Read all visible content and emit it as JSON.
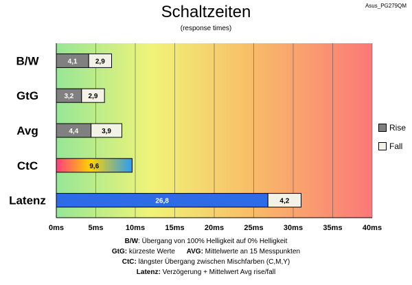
{
  "model_label": "Asus_PG279QM",
  "title": "Schaltzeiten",
  "subtitle": "(response times)",
  "legend": [
    {
      "name": "Rise",
      "color": "#808080"
    },
    {
      "name": "Fall",
      "color": "#f2f2e6"
    }
  ],
  "notes": [
    {
      "key": "B/W",
      "text": ":  Übergang von 100% Helligkeit auf 0% Helligkeit"
    },
    {
      "key": "GtG:",
      "text": " kürzeste  Werte",
      "key2": "AVG:",
      "text2": " Mittelwerte  an 15 Messpunkten"
    },
    {
      "key": "CtC:",
      "text": " längster Übergang  zwischen Mischfarben  (C,M,Y)"
    },
    {
      "key": "Latenz:",
      "text": " Verzögerung  + Mittelwert Avg rise/fall"
    }
  ],
  "chart_data": {
    "type": "bar",
    "orientation": "horizontal",
    "stacked": true,
    "x_unit": "ms",
    "xlim": [
      0,
      40
    ],
    "x_ticks": [
      "0ms",
      "5ms",
      "10ms",
      "15ms",
      "20ms",
      "25ms",
      "30ms",
      "35ms",
      "40ms"
    ],
    "background": "green-to-red gradient along x axis",
    "grid": "vertical gridlines every 5 ms",
    "legend_position": "right",
    "categories": [
      "B/W",
      "GtG",
      "Avg",
      "CtC",
      "Latenz"
    ],
    "series": [
      {
        "name": "Rise",
        "values": [
          4.1,
          3.2,
          4.4,
          9.6,
          26.8
        ],
        "labels": [
          "4,1",
          "3,2",
          "4,4",
          "9,6",
          "26,8"
        ]
      },
      {
        "name": "Fall",
        "values": [
          2.9,
          2.9,
          3.9,
          null,
          4.2
        ],
        "labels": [
          "2,9",
          "2,9",
          "3,9",
          "",
          "4,2"
        ]
      }
    ],
    "colors": {
      "rise": "#808080",
      "fall": "#f2f2e6",
      "ctc_gradient": [
        "#ff3d7f",
        "#ffd200",
        "#2a9df4"
      ],
      "latenz": "#2e6be6"
    }
  }
}
